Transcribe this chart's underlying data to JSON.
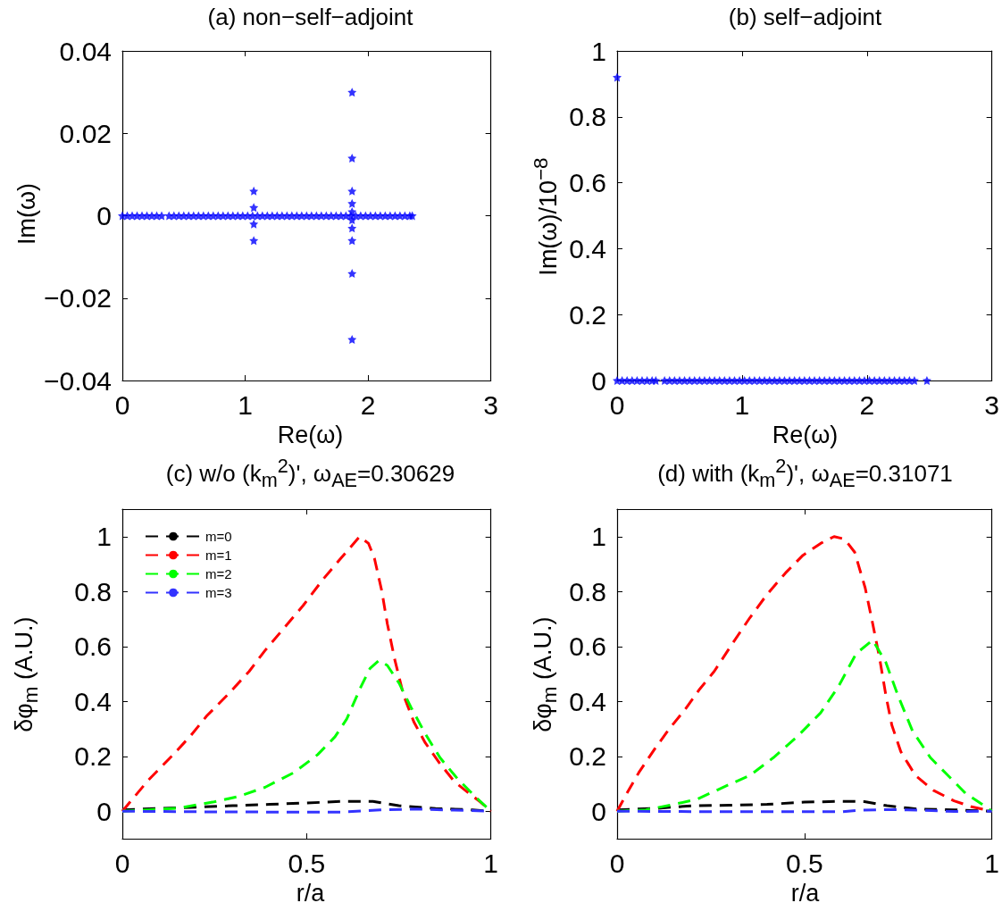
{
  "chart_data": [
    {
      "type": "scatter",
      "title": "(a) non−self−adjoint",
      "xlabel": "Re(ω)",
      "ylabel": "Im(ω)",
      "marker": "star",
      "xlim": [
        0,
        3
      ],
      "xticks": [
        0,
        1,
        2,
        3
      ],
      "ylim": [
        -0.04,
        0.04
      ],
      "yticks": [
        {
          "value": -0.04,
          "label": "−0.04"
        },
        {
          "value": -0.02,
          "label": "−0.02"
        },
        0,
        0.02,
        0.04
      ],
      "series": [
        {
          "color": "#0000ff",
          "x": [
            0,
            0.04,
            0.08,
            0.12,
            0.16,
            0.2,
            0.24,
            0.28,
            0.32,
            0.38,
            0.42,
            0.46,
            0.5,
            0.54,
            0.58,
            0.62,
            0.66,
            0.7,
            0.74,
            0.78,
            0.82,
            0.86,
            0.9,
            0.94,
            0.98,
            1.02,
            1.06,
            1.1,
            1.14,
            1.18,
            1.22,
            1.26,
            1.3,
            1.34,
            1.38,
            1.42,
            1.46,
            1.5,
            1.54,
            1.58,
            1.62,
            1.66,
            1.7,
            1.74,
            1.78,
            1.82,
            1.86,
            1.9,
            1.94,
            1.98,
            2.02,
            2.06,
            2.1,
            2.14,
            2.18,
            2.22,
            2.26,
            2.3,
            2.34,
            2.36,
            1.07,
            1.07,
            1.07,
            1.07,
            1.87,
            1.87,
            1.87,
            1.87,
            1.87,
            1.87,
            1.87,
            1.87,
            1.87,
            1.87
          ],
          "values": [
            0,
            0,
            0,
            0,
            0,
            0,
            0,
            0,
            0,
            0,
            0,
            0,
            0,
            0,
            0,
            0,
            0,
            0,
            0,
            0,
            0,
            0,
            0,
            0,
            0,
            0,
            0,
            0,
            0,
            0,
            0,
            0,
            0,
            0,
            0,
            0,
            0,
            0,
            0,
            0,
            0,
            0,
            0,
            0,
            0,
            0,
            0,
            0,
            0,
            0,
            0,
            0,
            0,
            0,
            0,
            0,
            0,
            0,
            0,
            0,
            0.006,
            0.002,
            -0.002,
            -0.006,
            0.03,
            0.014,
            0.006,
            0.003,
            0.001,
            -0.001,
            -0.003,
            -0.006,
            -0.014,
            -0.03
          ]
        }
      ]
    },
    {
      "type": "scatter",
      "title": "(b) self−adjoint",
      "xlabel": "Re(ω)",
      "ylabel": "Im(ω)/10$^{−8}$",
      "marker": "star",
      "xlim": [
        0,
        3
      ],
      "xticks": [
        0,
        1,
        2,
        3
      ],
      "ylim": [
        0,
        1
      ],
      "yticks": [
        0,
        0.2,
        0.4,
        0.6,
        0.8,
        1
      ],
      "series": [
        {
          "color": "#0000ff",
          "x": [
            0,
            0.04,
            0.08,
            0.12,
            0.16,
            0.2,
            0.24,
            0.28,
            0.31,
            0.38,
            0.42,
            0.46,
            0.5,
            0.54,
            0.58,
            0.62,
            0.66,
            0.7,
            0.74,
            0.78,
            0.82,
            0.86,
            0.9,
            0.94,
            0.98,
            1.02,
            1.06,
            1.1,
            1.14,
            1.18,
            1.22,
            1.26,
            1.3,
            1.34,
            1.38,
            1.42,
            1.46,
            1.5,
            1.54,
            1.58,
            1.62,
            1.66,
            1.7,
            1.74,
            1.78,
            1.82,
            1.86,
            1.9,
            1.94,
            1.98,
            2.02,
            2.06,
            2.1,
            2.14,
            2.18,
            2.22,
            2.26,
            2.3,
            2.34,
            2.38,
            2.48,
            0
          ],
          "values": [
            0,
            0,
            0,
            0,
            0,
            0,
            0,
            0,
            0,
            0,
            0,
            0,
            0,
            0,
            0,
            0,
            0,
            0,
            0,
            0,
            0,
            0,
            0,
            0,
            0,
            0,
            0,
            0,
            0,
            0,
            0,
            0,
            0,
            0,
            0,
            0,
            0,
            0,
            0,
            0,
            0,
            0,
            0,
            0,
            0,
            0,
            0,
            0,
            0,
            0,
            0,
            0,
            0,
            0,
            0,
            0,
            0,
            0,
            0,
            0,
            0,
            0.92
          ]
        }
      ]
    },
    {
      "type": "line",
      "title": "(c) w/o (k$_{m}$$^{2}$)', ω$_{AE}$=0.30629",
      "xlabel": "r/a",
      "ylabel": "δφ$_{m}$ (A.U.)",
      "line_style": "dashed",
      "legend": "top left",
      "xlim": [
        0,
        1
      ],
      "xticks": [
        0,
        0.5,
        1
      ],
      "ylim": [
        -0.1,
        1.1
      ],
      "yticks": [
        0,
        0.2,
        0.4,
        0.6,
        0.8,
        1
      ],
      "series": [
        {
          "name": "m=0",
          "color": "#000000",
          "x": [
            0,
            0.1,
            0.2,
            0.3,
            0.4,
            0.5,
            0.6,
            0.68,
            0.75,
            0.85,
            0.95,
            1
          ],
          "values": [
            0.005,
            0.01,
            0.015,
            0.02,
            0.025,
            0.03,
            0.036,
            0.036,
            0.02,
            0.01,
            0.005,
            0
          ]
        },
        {
          "name": "m=1",
          "color": "#ff0000",
          "x": [
            0,
            0.071,
            0.138,
            0.186,
            0.229,
            0.285,
            0.344,
            0.387,
            0.435,
            0.49,
            0.545,
            0.593,
            0.644,
            0.668,
            0.684,
            0.704,
            0.719,
            0.739,
            0.763,
            0.791,
            0.822,
            0.862,
            0.901,
            0.941,
            0.972,
            1
          ],
          "values": [
            0,
            0.114,
            0.206,
            0.276,
            0.347,
            0.423,
            0.509,
            0.585,
            0.661,
            0.748,
            0.845,
            0.921,
            1.0,
            0.975,
            0.921,
            0.802,
            0.683,
            0.553,
            0.423,
            0.325,
            0.249,
            0.173,
            0.108,
            0.065,
            0.033,
            0
          ]
        },
        {
          "name": "m=2",
          "color": "#00ff00",
          "x": [
            0,
            0.071,
            0.15,
            0.245,
            0.316,
            0.387,
            0.466,
            0.53,
            0.577,
            0.609,
            0.648,
            0.672,
            0.696,
            0.719,
            0.751,
            0.783,
            0.822,
            0.862,
            0.909,
            0.957,
            1
          ],
          "values": [
            0,
            0.005,
            0.011,
            0.033,
            0.054,
            0.087,
            0.141,
            0.206,
            0.271,
            0.336,
            0.455,
            0.52,
            0.549,
            0.531,
            0.466,
            0.379,
            0.282,
            0.195,
            0.119,
            0.054,
            0
          ]
        },
        {
          "name": "m=3",
          "color": "#3333ff",
          "x": [
            0,
            0.2,
            0.4,
            0.6,
            0.7,
            0.8,
            0.9,
            1
          ],
          "values": [
            0,
            -0.002,
            -0.003,
            -0.003,
            0.005,
            0.008,
            0.004,
            0
          ]
        }
      ]
    },
    {
      "type": "line",
      "title": "(d) with (k$_{m}$$^{2}$)', ω$_{AE}$=0.31071",
      "xlabel": "r/a",
      "ylabel": "δφ$_{m}$ (A.U.)",
      "line_style": "dashed",
      "xlim": [
        0,
        1
      ],
      "xticks": [
        0,
        0.5,
        1
      ],
      "ylim": [
        -0.1,
        1.1
      ],
      "yticks": [
        0,
        0.2,
        0.4,
        0.6,
        0.8,
        1
      ],
      "series": [
        {
          "color": "#000000",
          "x": [
            0,
            0.1,
            0.2,
            0.3,
            0.4,
            0.5,
            0.6,
            0.66,
            0.72,
            0.8,
            0.9,
            1
          ],
          "values": [
            0.005,
            0.01,
            0.02,
            0.022,
            0.025,
            0.033,
            0.036,
            0.035,
            0.02,
            0.008,
            0.005,
            0
          ]
        },
        {
          "color": "#ff0000",
          "x": [
            0,
            0.026,
            0.058,
            0.101,
            0.141,
            0.18,
            0.22,
            0.259,
            0.306,
            0.354,
            0.401,
            0.449,
            0.496,
            0.543,
            0.579,
            0.607,
            0.634,
            0.662,
            0.682,
            0.701,
            0.717,
            0.733,
            0.757,
            0.796,
            0.844,
            0.899,
            0.946,
            1
          ],
          "values": [
            0,
            0.065,
            0.141,
            0.228,
            0.303,
            0.368,
            0.444,
            0.509,
            0.607,
            0.704,
            0.791,
            0.867,
            0.932,
            0.975,
            1.0,
            0.991,
            0.943,
            0.813,
            0.683,
            0.553,
            0.423,
            0.314,
            0.217,
            0.13,
            0.076,
            0.038,
            0.016,
            0
          ]
        },
        {
          "color": "#00ff00",
          "x": [
            0,
            0.077,
            0.141,
            0.212,
            0.291,
            0.354,
            0.417,
            0.48,
            0.543,
            0.591,
            0.638,
            0.682,
            0.717,
            0.749,
            0.788,
            0.836,
            0.883,
            0.93,
            0.978,
            1
          ],
          "values": [
            0,
            0.005,
            0.022,
            0.043,
            0.092,
            0.13,
            0.195,
            0.271,
            0.358,
            0.455,
            0.574,
            0.623,
            0.542,
            0.423,
            0.293,
            0.195,
            0.13,
            0.065,
            0.022,
            0
          ]
        },
        {
          "color": "#3333ff",
          "x": [
            0,
            0.3,
            0.6,
            0.65,
            0.72,
            0.8,
            0.9,
            1
          ],
          "values": [
            0,
            -0.002,
            -0.002,
            0.004,
            0.006,
            0.004,
            -0.001,
            0
          ]
        }
      ]
    }
  ]
}
